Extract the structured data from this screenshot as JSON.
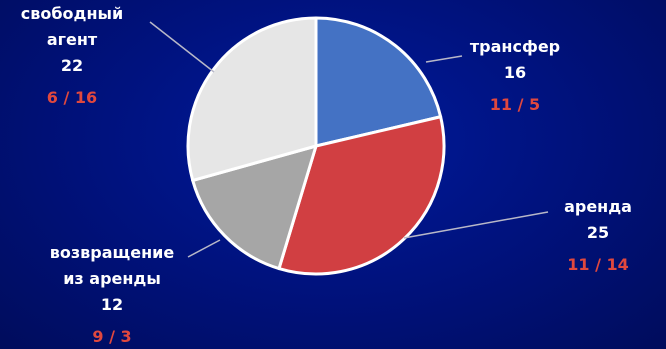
{
  "chart_data": {
    "type": "pie",
    "title": "",
    "colors": {
      "background": "#00117a",
      "label_text": "#ffffff",
      "split_text": "#e0483e",
      "leader_line": "#b8b8c8",
      "slice_border": "#ffffff"
    },
    "slices": [
      {
        "label": "трансфер",
        "value": 16,
        "split": "11 / 5",
        "color": "#4472c4"
      },
      {
        "label": "аренда",
        "value": 25,
        "split": "11 / 14",
        "color": "#d13f42"
      },
      {
        "label": "возвращение из аренды",
        "label_lines": [
          "возвращение",
          "из аренды"
        ],
        "value": 12,
        "split": "9 / 3",
        "color": "#a6a6a6"
      },
      {
        "label": "свободный агент",
        "label_lines": [
          "свободный",
          "агент"
        ],
        "value": 22,
        "split": "6 / 16",
        "color": "#e6e6e6"
      }
    ]
  }
}
